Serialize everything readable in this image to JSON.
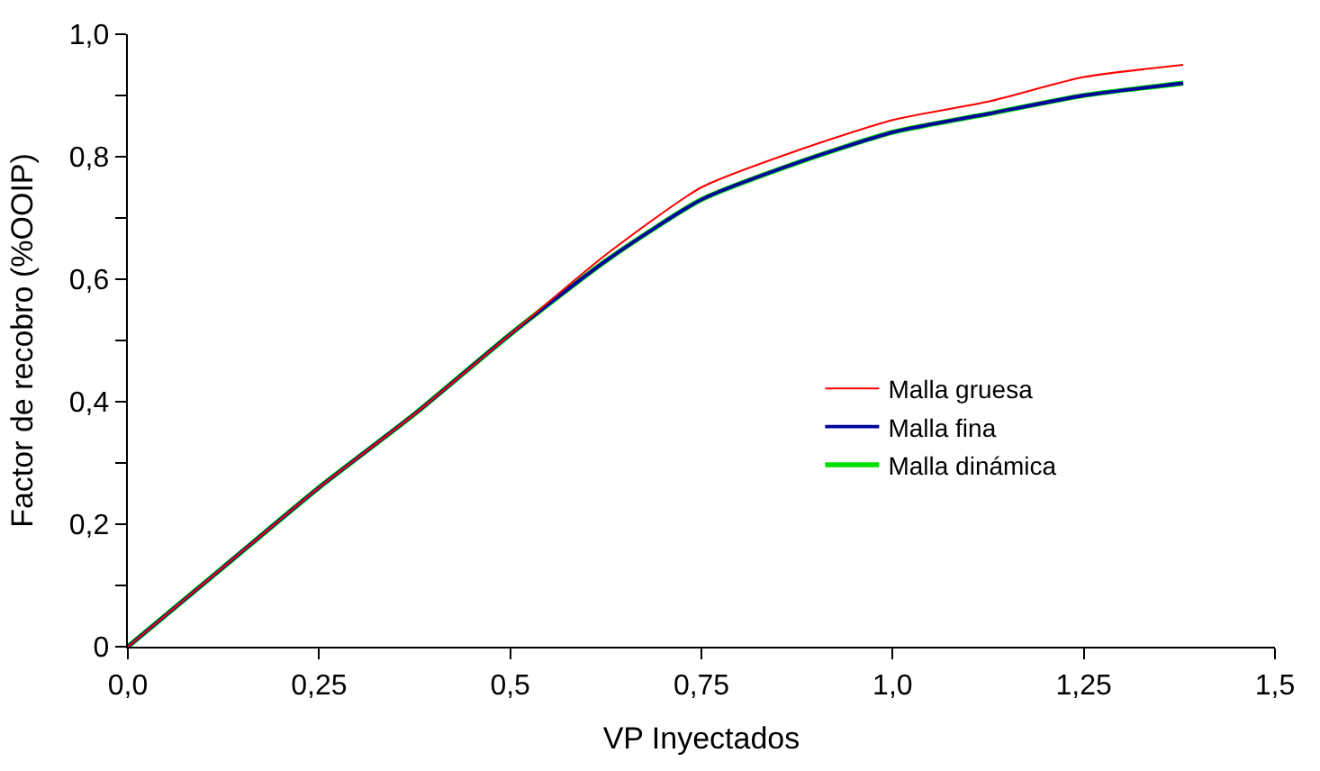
{
  "chart_data": {
    "type": "line",
    "xlabel": "VP Inyectados",
    "ylabel": "Factor de recobro (%OOIP)",
    "x": [
      0,
      0.125,
      0.25,
      0.375,
      0.5,
      0.625,
      0.75,
      0.875,
      1.0,
      1.125,
      1.25,
      1.38
    ],
    "series": [
      {
        "name": "Malla gruesa",
        "color": "#ff0000",
        "values": [
          0,
          0.13,
          0.26,
          0.38,
          0.51,
          0.64,
          0.75,
          0.81,
          0.86,
          0.89,
          0.93,
          0.95
        ]
      },
      {
        "name": "Malla fina",
        "color": "#0000a0",
        "values": [
          0,
          0.13,
          0.26,
          0.38,
          0.51,
          0.63,
          0.73,
          0.79,
          0.84,
          0.87,
          0.9,
          0.92
        ]
      },
      {
        "name": "Malla dinámica",
        "color": "#00e000",
        "values": [
          0,
          0.13,
          0.26,
          0.38,
          0.51,
          0.63,
          0.73,
          0.79,
          0.84,
          0.87,
          0.9,
          0.92
        ]
      }
    ],
    "xlim": [
      0,
      1.5
    ],
    "ylim": [
      0,
      1.0
    ],
    "xticks": [
      {
        "value": 0,
        "label": "0,0"
      },
      {
        "value": 0.25,
        "label": "0,25"
      },
      {
        "value": 0.5,
        "label": "0,5"
      },
      {
        "value": 0.75,
        "label": "0,75"
      },
      {
        "value": 1.0,
        "label": "1,0"
      },
      {
        "value": 1.25,
        "label": "1,25"
      },
      {
        "value": 1.5,
        "label": "1,5"
      }
    ],
    "yticks": [
      0,
      {
        "value": 0.1,
        "label": null
      },
      {
        "value": 0.2,
        "label": "0,2"
      },
      {
        "value": 0.3,
        "label": null
      },
      {
        "value": 0.4,
        "label": "0,4"
      },
      {
        "value": 0.5,
        "label": null
      },
      {
        "value": 0.6,
        "label": "0,6"
      },
      {
        "value": 0.7,
        "label": null
      },
      {
        "value": 0.8,
        "label": "0,8"
      },
      {
        "value": 0.9,
        "label": null
      },
      {
        "value": 1.0,
        "label": "1,0"
      }
    ],
    "legend": "bottom right",
    "marker": "none",
    "line_style": "solid"
  }
}
